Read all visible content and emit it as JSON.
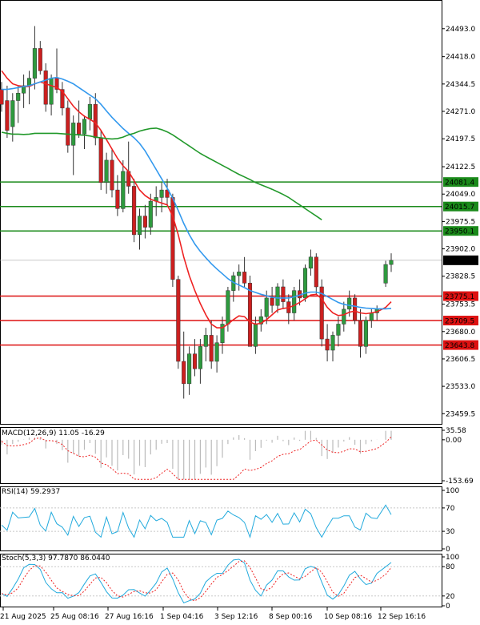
{
  "chart_data": {
    "type": "candlestick",
    "price_panel": {
      "ylim": [
        23430,
        24570
      ],
      "y_ticks": [
        "24493.0",
        "24418.0",
        "24344.5",
        "24271.0",
        "24197.5",
        "24122.5",
        "24049.0",
        "23975.5",
        "23902.0",
        "23828.5",
        "23753.5",
        "23680.0",
        "23606.5",
        "23533.0",
        "23459.5"
      ],
      "current_price": "23871.3",
      "resistance_levels": [
        {
          "label": "24081.4",
          "value": 24081.4,
          "color": "#1a8a1a"
        },
        {
          "label": "24015.7",
          "value": 24015.7,
          "color": "#1a8a1a"
        },
        {
          "label": "23950.1",
          "value": 23950.1,
          "color": "#1a8a1a"
        }
      ],
      "support_levels": [
        {
          "label": "23775.1",
          "value": 23775.1,
          "color": "#dd1111"
        },
        {
          "label": "23709.5",
          "value": 23709.5,
          "color": "#dd1111"
        },
        {
          "label": "23643.8",
          "value": 23643.8,
          "color": "#dd1111"
        }
      ],
      "candles_ohlc": [
        [
          24330,
          24350,
          24270,
          24290
        ],
        [
          24300,
          24340,
          24200,
          24220
        ],
        [
          24230,
          24320,
          24190,
          24300
        ],
        [
          24300,
          24340,
          24240,
          24320
        ],
        [
          24320,
          24370,
          24280,
          24340
        ],
        [
          24340,
          24380,
          24290,
          24360
        ],
        [
          24360,
          24500,
          24330,
          24440
        ],
        [
          24440,
          24460,
          24370,
          24380
        ],
        [
          24380,
          24400,
          24270,
          24290
        ],
        [
          24290,
          24370,
          24260,
          24360
        ],
        [
          24360,
          24440,
          24320,
          24330
        ],
        [
          24330,
          24350,
          24260,
          24280
        ],
        [
          24280,
          24300,
          24160,
          24180
        ],
        [
          24180,
          24260,
          24100,
          24240
        ],
        [
          24240,
          24300,
          24200,
          24210
        ],
        [
          24210,
          24260,
          24170,
          24250
        ],
        [
          24250,
          24310,
          24220,
          24290
        ],
        [
          24290,
          24320,
          24180,
          24200
        ],
        [
          24200,
          24220,
          24060,
          24080
        ],
        [
          24080,
          24160,
          24050,
          24140
        ],
        [
          24140,
          24170,
          24040,
          24060
        ],
        [
          24060,
          24100,
          23990,
          24010
        ],
        [
          24010,
          24140,
          24000,
          24110
        ],
        [
          24110,
          24190,
          24050,
          24070
        ],
        [
          24070,
          24090,
          23920,
          23940
        ],
        [
          23940,
          24010,
          23900,
          23990
        ],
        [
          23990,
          24020,
          23930,
          23960
        ],
        [
          23960,
          24050,
          23940,
          24030
        ],
        [
          24030,
          24070,
          23990,
          24040
        ],
        [
          24040,
          24080,
          24000,
          24060
        ],
        [
          24060,
          24090,
          24020,
          24040
        ],
        [
          24040,
          24050,
          23800,
          23820
        ],
        [
          23820,
          23830,
          23580,
          23600
        ],
        [
          23600,
          23680,
          23500,
          23540
        ],
        [
          23540,
          23640,
          23510,
          23620
        ],
        [
          23620,
          23660,
          23560,
          23580
        ],
        [
          23580,
          23660,
          23540,
          23640
        ],
        [
          23640,
          23690,
          23600,
          23670
        ],
        [
          23670,
          23710,
          23580,
          23600
        ],
        [
          23600,
          23670,
          23570,
          23650
        ],
        [
          23650,
          23720,
          23620,
          23700
        ],
        [
          23700,
          23800,
          23680,
          23790
        ],
        [
          23790,
          23840,
          23760,
          23830
        ],
        [
          23830,
          23860,
          23790,
          23840
        ],
        [
          23840,
          23880,
          23800,
          23810
        ],
        [
          23810,
          23830,
          23660,
          23640
        ],
        [
          23640,
          23720,
          23620,
          23700
        ],
        [
          23700,
          23740,
          23680,
          23720
        ],
        [
          23720,
          23790,
          23700,
          23770
        ],
        [
          23770,
          23800,
          23730,
          23750
        ],
        [
          23750,
          23810,
          23730,
          23800
        ],
        [
          23800,
          23820,
          23740,
          23760
        ],
        [
          23760,
          23780,
          23700,
          23730
        ],
        [
          23730,
          23800,
          23710,
          23790
        ],
        [
          23790,
          23820,
          23750,
          23770
        ],
        [
          23770,
          23860,
          23760,
          23850
        ],
        [
          23850,
          23900,
          23830,
          23880
        ],
        [
          23880,
          23890,
          23780,
          23800
        ],
        [
          23800,
          23820,
          23640,
          23660
        ],
        [
          23660,
          23700,
          23600,
          23630
        ],
        [
          23630,
          23680,
          23600,
          23670
        ],
        [
          23670,
          23720,
          23640,
          23700
        ],
        [
          23700,
          23760,
          23680,
          23740
        ],
        [
          23740,
          23790,
          23720,
          23770
        ],
        [
          23770,
          23780,
          23700,
          23710
        ],
        [
          23710,
          23740,
          23610,
          23640
        ],
        [
          23640,
          23720,
          23620,
          23710
        ],
        [
          23710,
          23740,
          23690,
          23730
        ],
        [
          23730,
          23750,
          23710,
          23740
        ],
        [
          23810,
          23870,
          23800,
          23860
        ],
        [
          23860,
          23890,
          23840,
          23871.3
        ]
      ],
      "moving_averages": [
        {
          "name": "MA fast",
          "color": "#ee2222",
          "values": [
            24380,
            24360,
            24345,
            24340,
            24338,
            24338,
            24345,
            24350,
            24345,
            24340,
            24335,
            24325,
            24305,
            24285,
            24270,
            24258,
            24250,
            24240,
            24220,
            24195,
            24170,
            24145,
            24125,
            24110,
            24085,
            24060,
            24045,
            24035,
            24030,
            24025,
            24020,
            23990,
            23940,
            23880,
            23830,
            23790,
            23755,
            23725,
            23700,
            23690,
            23690,
            23700,
            23712,
            23722,
            23720,
            23705,
            23700,
            23702,
            23712,
            23725,
            23738,
            23742,
            23744,
            23750,
            23758,
            23768,
            23778,
            23780,
            23768,
            23745,
            23730,
            23723,
            23725,
            23732,
            23735,
            23730,
            23728,
            23730,
            23733,
            23745,
            23760
          ]
        },
        {
          "name": "MA medium",
          "color": "#3399ee",
          "values": [
            24330,
            24330,
            24332,
            24335,
            24338,
            24340,
            24345,
            24350,
            24355,
            24360,
            24362,
            24358,
            24352,
            24345,
            24335,
            24325,
            24315,
            24305,
            24290,
            24272,
            24255,
            24240,
            24225,
            24212,
            24200,
            24185,
            24165,
            24140,
            24115,
            24090,
            24065,
            24038,
            24005,
            23970,
            23940,
            23915,
            23895,
            23878,
            23862,
            23848,
            23835,
            23822,
            23812,
            23805,
            23798,
            23790,
            23785,
            23780,
            23776,
            23772,
            23770,
            23770,
            23770,
            23773,
            23778,
            23783,
            23786,
            23786,
            23782,
            23774,
            23766,
            23758,
            23753,
            23750,
            23748,
            23745,
            23743,
            23742,
            23741,
            23741,
            23742
          ]
        },
        {
          "name": "MA slow",
          "color": "#22992b",
          "values": [
            24215,
            24212,
            24210,
            24210,
            24209,
            24210,
            24212,
            24212,
            24212,
            24212,
            24212,
            24211,
            24210,
            24209,
            24208,
            24207,
            24205,
            24202,
            24200,
            24198,
            24197,
            24198,
            24202,
            24208,
            24212,
            24218,
            24222,
            24225,
            24226,
            24222,
            24216,
            24208,
            24198,
            24188,
            24178,
            24168,
            24158,
            24150,
            24142,
            24134,
            24126,
            24118,
            24110,
            24102,
            24095,
            24088,
            24080,
            24074,
            24068,
            24062,
            24055,
            24048,
            24040,
            24030,
            24020,
            24010,
            24000,
            23990,
            23980
          ]
        }
      ]
    },
    "x_tick_labels": [
      "21 Aug 2025",
      "25 Aug 08:16",
      "27 Aug 16:16",
      "1 Sep 04:16",
      "3 Sep 12:16",
      "8 Sep 00:16",
      "10 Sep 08:16",
      "12 Sep 16:16"
    ],
    "macd_panel": {
      "title": "MACD(12,26,9) 11.05 -16.29",
      "y_ticks": [
        "35.58",
        "0.00",
        "-153.69"
      ],
      "ylim": [
        -153.69,
        35.58
      ]
    },
    "rsi_panel": {
      "title": "RSI(14) 59.2937",
      "y_ticks": [
        "100",
        "70",
        "30",
        "0"
      ],
      "ylim": [
        0,
        100
      ]
    },
    "stoch_panel": {
      "title": "Stoch(5,3,3) 97.7870 86.0440",
      "y_ticks": [
        "100",
        "80",
        "20",
        "0"
      ],
      "ylim": [
        0,
        100
      ]
    },
    "colors": {
      "bull": "#2e9a3e",
      "bear": "#cc1f1f",
      "grid": "#c8c8c8",
      "axis": "#000000",
      "dashed_signal": "#ee2222",
      "oscillator": "#22aadd"
    }
  }
}
